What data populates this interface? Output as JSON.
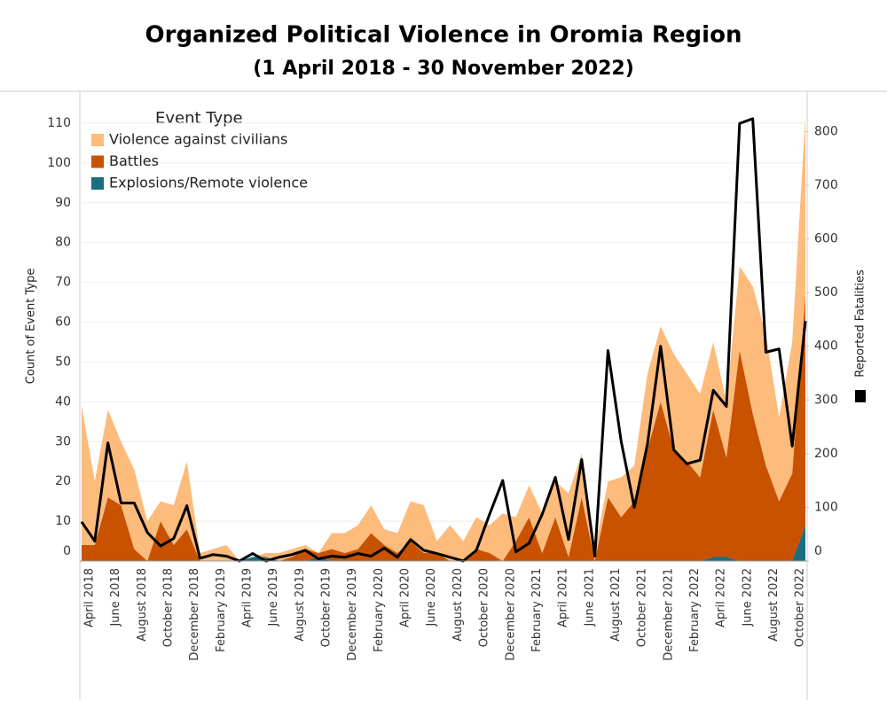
{
  "chart_data": {
    "type": "stacked-area-line",
    "title": "Organized Political Violence in Oromia Region",
    "subtitle": "(1 April 2018 - 30 November 2022)",
    "y_label": "Count of Event Type",
    "y2_label": "Reported Fatalities",
    "legend_title": "Event Type",
    "legend": "top-left",
    "categories": [
      "April 2018",
      null,
      "June 2018",
      null,
      "August 2018",
      null,
      "October 2018",
      null,
      "December 2018",
      null,
      "February 2019",
      null,
      "April 2019",
      null,
      "June 2019",
      null,
      "August 2019",
      null,
      "October 2019",
      null,
      "December 2019",
      null,
      "February 2020",
      null,
      "April 2020",
      null,
      "June 2020",
      null,
      "August 2020",
      null,
      "October 2020",
      null,
      "December 2020",
      null,
      "February 2021",
      null,
      "April 2021",
      null,
      "June 2021",
      null,
      "August 2021",
      null,
      "October 2021",
      null,
      "December 2021",
      null,
      "February 2022",
      null,
      "April 2022",
      null,
      "June 2022",
      null,
      "August 2022",
      null,
      "October 2022",
      null
    ],
    "series": [
      {
        "name": "Violence against civilians",
        "color": "#fdbb7c",
        "values": [
          35,
          16,
          22,
          16,
          20,
          10,
          5,
          10,
          17,
          2,
          3,
          4,
          0,
          0,
          1,
          2,
          2,
          1,
          0,
          4,
          5,
          6,
          7,
          4,
          5,
          10,
          12,
          3,
          9,
          5,
          8,
          7,
          12,
          6,
          8,
          10,
          9,
          16,
          11,
          3,
          4,
          10,
          9,
          19,
          19,
          24,
          22,
          21,
          17,
          14,
          21,
          32,
          33,
          21,
          33,
          45
        ]
      },
      {
        "name": "Battles",
        "color": "#c85200",
        "values": [
          4,
          4,
          16,
          14,
          3,
          0,
          10,
          4,
          8,
          0,
          0,
          0,
          0,
          0,
          0,
          0,
          1,
          3,
          1,
          3,
          2,
          3,
          7,
          4,
          2,
          5,
          2,
          2,
          0,
          0,
          3,
          2,
          0,
          5,
          11,
          2,
          11,
          1,
          16,
          0,
          16,
          11,
          15,
          28,
          40,
          28,
          25,
          21,
          37,
          25,
          53,
          37,
          24,
          15,
          22,
          58
        ]
      },
      {
        "name": "Explosions/Remote violence",
        "color": "#1b6d80",
        "values": [
          0,
          0,
          0,
          0,
          0,
          0,
          0,
          0,
          0,
          0,
          0,
          0,
          0,
          1,
          1,
          0,
          0,
          0,
          1,
          0,
          0,
          0,
          0,
          0,
          0,
          0,
          0,
          0,
          0,
          0,
          0,
          0,
          0,
          0,
          0,
          0,
          0,
          0,
          0,
          0,
          0,
          0,
          0,
          0,
          0,
          0,
          0,
          0,
          1,
          1,
          0,
          0,
          0,
          0,
          0,
          9
        ]
      },
      {
        "name": "Reported Fatalities",
        "color": "#000000",
        "axis": "y2",
        "values": [
          73,
          37,
          220,
          108,
          108,
          53,
          28,
          42,
          103,
          5,
          12,
          9,
          0,
          14,
          0,
          7,
          12,
          20,
          4,
          9,
          7,
          14,
          9,
          24,
          7,
          40,
          20,
          14,
          7,
          0,
          20,
          87,
          150,
          17,
          33,
          87,
          156,
          40,
          189,
          9,
          392,
          223,
          100,
          218,
          400,
          207,
          181,
          188,
          318,
          288,
          815,
          824,
          389,
          395,
          214,
          447
        ]
      }
    ],
    "ylim": [
      0,
      118
    ],
    "yticks": [
      0,
      10,
      20,
      30,
      40,
      50,
      60,
      70,
      80,
      90,
      100,
      110
    ],
    "y2lim": [
      0,
      875
    ],
    "y2ticks": [
      0,
      100,
      200,
      300,
      400,
      500,
      600,
      700,
      800
    ]
  }
}
